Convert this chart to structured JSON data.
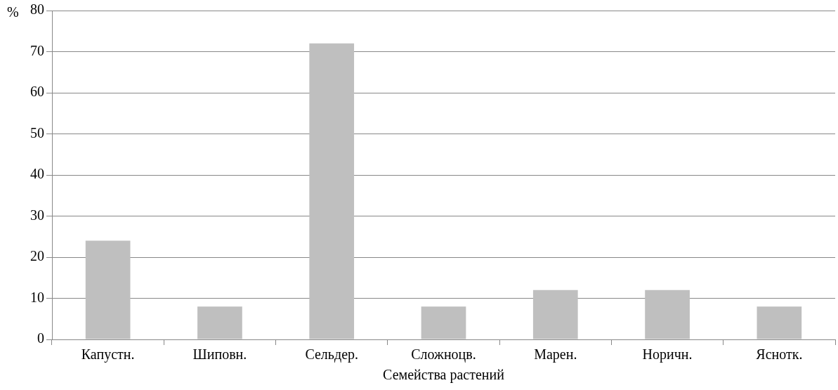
{
  "chart_data": {
    "type": "bar",
    "xlabel": "Семейства растений",
    "ylabel": "%",
    "categories": [
      "Капустн.",
      "Шиповн.",
      "Сельдер.",
      "Сложноцв.",
      "Марен.",
      "Норичн.",
      "Яснотк."
    ],
    "values": [
      24,
      8,
      72,
      8,
      12,
      12,
      8
    ],
    "color": "#bfbfbf",
    "ylim": [
      0,
      80
    ],
    "yticks": [
      0,
      10,
      20,
      30,
      40,
      50,
      60,
      70,
      80
    ],
    "grid": "y"
  }
}
